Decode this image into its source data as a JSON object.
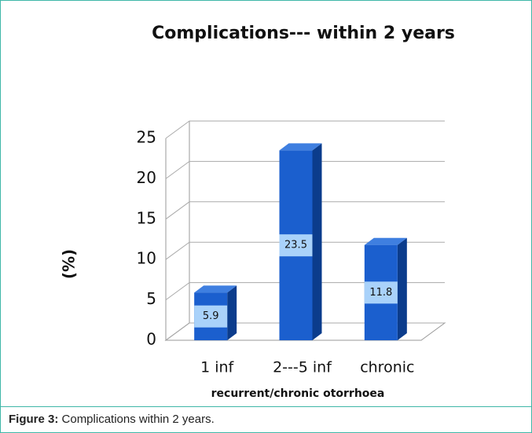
{
  "chart_data": {
    "type": "bar3d",
    "title": "Complications--- within 2 years",
    "y_label": "(%)",
    "x_label": "recurrent/chronic otorrhoea",
    "categories": [
      "1 inf",
      "2---5 inf",
      "chronic"
    ],
    "values": [
      5.9,
      23.5,
      11.8
    ],
    "color": "#1b5fce",
    "ylim": [
      0,
      25
    ],
    "yticks": [
      0,
      5,
      10,
      15,
      20,
      25
    ],
    "grid": true
  },
  "figure": {
    "label": "Figure 3:",
    "text": "Complications within 2 years."
  }
}
